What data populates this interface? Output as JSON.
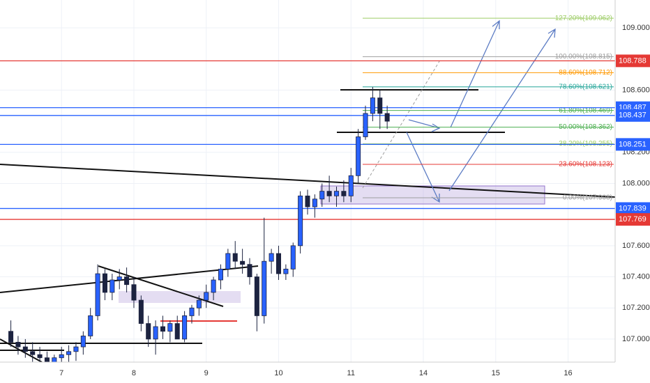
{
  "chart_data": {
    "type": "candlestick",
    "up_color": "#2962ff",
    "down_color": "#1c2340",
    "xlim": [
      -8.5,
      76.5
    ],
    "ylim": [
      106.852,
      109.179
    ],
    "grid": true,
    "xticks": [
      {
        "value": 0,
        "label": "7"
      },
      {
        "value": 10,
        "label": "8"
      },
      {
        "value": 20,
        "label": "9"
      },
      {
        "value": 30,
        "label": "10"
      },
      {
        "value": 40,
        "label": "11"
      },
      {
        "value": 50,
        "label": "14"
      },
      {
        "value": 60,
        "label": "15"
      },
      {
        "value": 70,
        "label": "16"
      }
    ],
    "yticks": [
      {
        "value": 109.0,
        "label": "109.000"
      },
      {
        "value": 108.6,
        "label": "108.600"
      },
      {
        "value": 108.2,
        "label": "108.200"
      },
      {
        "value": 108.0,
        "label": "108.000"
      },
      {
        "value": 107.6,
        "label": "107.600"
      },
      {
        "value": 107.4,
        "label": "107.400"
      },
      {
        "value": 107.2,
        "label": "107.200"
      },
      {
        "value": 107.0,
        "label": "107.000"
      }
    ],
    "x": [
      -7,
      -6,
      -5,
      -4,
      -3,
      -2,
      -1,
      0,
      1,
      2,
      3,
      4,
      5,
      6,
      7,
      8,
      9,
      10,
      11,
      12,
      13,
      14,
      15,
      16,
      17,
      18,
      19,
      20,
      21,
      22,
      23,
      24,
      25,
      26,
      27,
      28,
      29,
      30,
      31,
      32,
      33,
      34,
      35,
      36,
      37,
      38,
      39,
      40,
      41,
      42,
      43,
      44,
      45
    ],
    "open": [
      107.05,
      106.98,
      106.95,
      106.92,
      106.9,
      106.88,
      106.85,
      106.88,
      106.9,
      106.92,
      106.95,
      107.02,
      107.15,
      107.42,
      107.3,
      107.38,
      107.4,
      107.35,
      107.25,
      107.1,
      107.0,
      107.08,
      107.05,
      107.1,
      107.0,
      107.15,
      107.2,
      107.25,
      107.3,
      107.38,
      107.45,
      107.55,
      107.5,
      107.48,
      107.4,
      107.15,
      107.5,
      107.55,
      107.42,
      107.45,
      107.6,
      107.92,
      107.85,
      107.9,
      107.95,
      107.92,
      107.95,
      107.92,
      108.05,
      108.3,
      108.45,
      108.55,
      108.45
    ],
    "high": [
      107.12,
      107.02,
      107.0,
      106.98,
      106.95,
      106.92,
      106.9,
      106.95,
      106.96,
      106.98,
      107.05,
      107.2,
      107.48,
      107.45,
      107.42,
      107.45,
      107.46,
      107.4,
      107.28,
      107.15,
      107.12,
      107.15,
      107.12,
      107.15,
      107.18,
      107.22,
      107.28,
      107.35,
      107.4,
      107.48,
      107.58,
      107.63,
      107.58,
      107.52,
      107.42,
      107.78,
      107.58,
      107.6,
      107.48,
      107.62,
      107.95,
      107.96,
      107.93,
      108.0,
      108.05,
      107.98,
      108.02,
      108.1,
      108.35,
      108.5,
      108.62,
      108.6,
      108.5
    ],
    "low": [
      106.95,
      106.9,
      106.88,
      106.85,
      106.82,
      106.8,
      106.8,
      106.82,
      106.85,
      106.86,
      106.9,
      107.0,
      107.12,
      107.25,
      107.25,
      107.32,
      107.3,
      107.2,
      107.05,
      106.95,
      106.9,
      107.0,
      106.98,
      107.02,
      106.98,
      107.1,
      107.15,
      107.2,
      107.25,
      107.32,
      107.4,
      107.45,
      107.42,
      107.35,
      107.05,
      107.1,
      107.42,
      107.38,
      107.38,
      107.4,
      107.55,
      107.8,
      107.78,
      107.85,
      107.88,
      107.85,
      107.88,
      107.88,
      108.0,
      108.28,
      108.4,
      108.35,
      108.35
    ],
    "close": [
      106.98,
      106.95,
      106.92,
      106.9,
      106.88,
      106.85,
      106.88,
      106.9,
      106.92,
      106.95,
      107.02,
      107.15,
      107.42,
      107.3,
      107.38,
      107.4,
      107.35,
      107.25,
      107.1,
      107.0,
      107.08,
      107.05,
      107.1,
      107.0,
      107.15,
      107.2,
      107.25,
      107.3,
      107.38,
      107.45,
      107.55,
      107.5,
      107.48,
      107.4,
      107.15,
      107.5,
      107.55,
      107.42,
      107.45,
      107.6,
      107.92,
      107.85,
      107.9,
      107.95,
      107.92,
      107.95,
      107.92,
      108.05,
      108.3,
      108.45,
      108.55,
      108.45,
      108.4
    ],
    "price_lines": [
      {
        "value": 108.788,
        "label": "108.788",
        "color": "#e53935"
      },
      {
        "value": 108.487,
        "label": "108.487",
        "color": "#2962ff"
      },
      {
        "value": 108.437,
        "label": "108.437",
        "color": "#2962ff"
      },
      {
        "value": 108.251,
        "label": "108.251",
        "color": "#2962ff"
      },
      {
        "value": 107.839,
        "label": "107.839",
        "color": "#2962ff"
      },
      {
        "value": 107.769,
        "label": "107.769",
        "color": "#e53935"
      }
    ],
    "fib_levels": [
      {
        "value": 109.062,
        "label": "127.20%(109.062)",
        "color": "#9ccc65"
      },
      {
        "value": 108.815,
        "label": "100.00%(108.815)",
        "color": "#9e9e9e"
      },
      {
        "value": 108.712,
        "label": "88.60%(108.712)",
        "color": "#ff9800"
      },
      {
        "value": 108.621,
        "label": "78.60%(108.621)",
        "color": "#26a69a"
      },
      {
        "value": 108.469,
        "label": "61.80%(108.469)",
        "color": "#4caf50"
      },
      {
        "value": 108.362,
        "label": "50.00%(108.362)",
        "color": "#4caf50"
      },
      {
        "value": 108.255,
        "label": "38.20%(108.255)",
        "color": "#9ccc65"
      },
      {
        "value": 108.123,
        "label": "23.60%(108.123)",
        "color": "#e53935"
      },
      {
        "value": 107.908,
        "label": "0.00%(107.908)",
        "color": "#9e9e9e"
      }
    ]
  }
}
